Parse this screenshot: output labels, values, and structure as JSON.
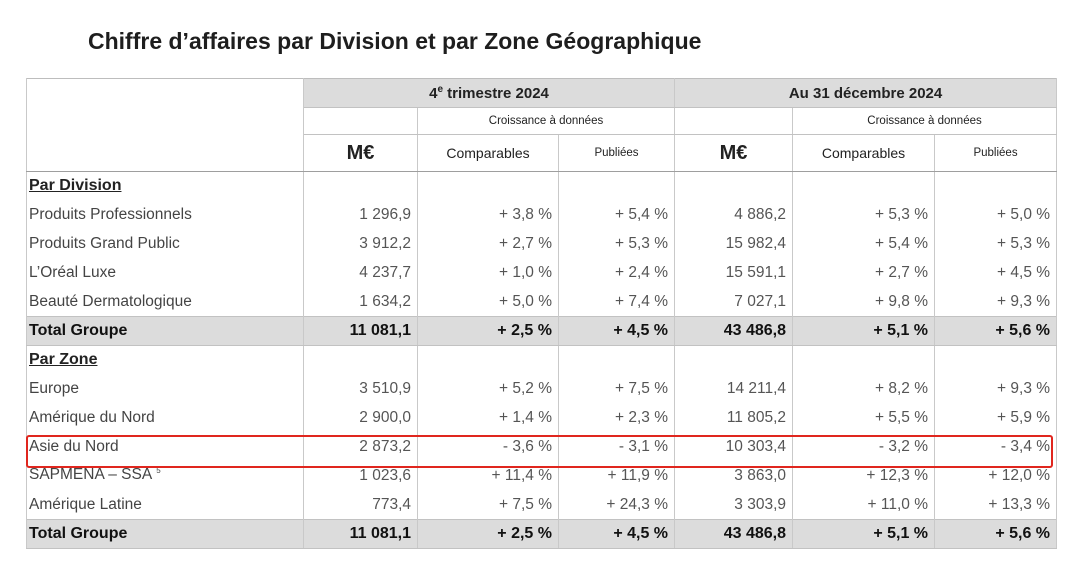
{
  "title": "Chiffre d’affaires par Division et par Zone Géographique",
  "header": {
    "period1": "4",
    "period1_sup": "e",
    "period1_rest": " trimestre 2024",
    "period2": "Au 31 décembre 2024",
    "growth_label": "Croissance à données",
    "me": "M€",
    "comparables": "Comparables",
    "publiees": "Publiées"
  },
  "sections": {
    "division_label": "Par Division",
    "zone_label": "Par Zone"
  },
  "division_rows": [
    {
      "label": "Produits Professionnels",
      "q4_me": "1 296,9",
      "q4_comp": "+ 3,8 %",
      "q4_pub": "+ 5,4 %",
      "y_me": "4 886,2",
      "y_comp": "+ 5,3 %",
      "y_pub": "+ 5,0 %"
    },
    {
      "label": "Produits Grand Public",
      "q4_me": "3 912,2",
      "q4_comp": "+ 2,7 %",
      "q4_pub": "+ 5,3 %",
      "y_me": "15 982,4",
      "y_comp": "+ 5,4 %",
      "y_pub": "+ 5,3 %"
    },
    {
      "label": "L’Oréal Luxe",
      "q4_me": "4 237,7",
      "q4_comp": "+ 1,0 %",
      "q4_pub": "+ 2,4 %",
      "y_me": "15 591,1",
      "y_comp": "+ 2,7 %",
      "y_pub": "+ 4,5 %"
    },
    {
      "label": "Beauté Dermatologique",
      "q4_me": "1 634,2",
      "q4_comp": "+ 5,0 %",
      "q4_pub": "+ 7,4 %",
      "y_me": "7 027,1",
      "y_comp": "+ 9,8 %",
      "y_pub": "+ 9,3 %"
    }
  ],
  "division_total": {
    "label": "Total Groupe",
    "q4_me": "11 081,1",
    "q4_comp": "+ 2,5 %",
    "q4_pub": "+ 4,5 %",
    "y_me": "43 486,8",
    "y_comp": "+ 5,1 %",
    "y_pub": "+ 5,6 %"
  },
  "zone_rows": [
    {
      "label": "Europe",
      "q4_me": "3 510,9",
      "q4_comp": "+ 5,2 %",
      "q4_pub": "+ 7,5 %",
      "y_me": "14 211,4",
      "y_comp": "+ 8,2 %",
      "y_pub": "+ 9,3 %"
    },
    {
      "label": "Amérique du Nord",
      "q4_me": "2 900,0",
      "q4_comp": "+ 1,4 %",
      "q4_pub": "+ 2,3 %",
      "y_me": "11 805,2",
      "y_comp": "+ 5,5 %",
      "y_pub": "+ 5,9 %"
    },
    {
      "label": "Asie du Nord",
      "q4_me": "2 873,2",
      "q4_comp": "- 3,6 %",
      "q4_pub": "- 3,1 %",
      "y_me": "10 303,4",
      "y_comp": "- 3,2 %",
      "y_pub": "- 3,4 %"
    },
    {
      "label": "SAPMENA – SSA",
      "label_sup": "5",
      "q4_me": "1 023,6",
      "q4_comp": "+ 11,4 %",
      "q4_pub": "+ 11,9 %",
      "y_me": "3 863,0",
      "y_comp": "+ 12,3 %",
      "y_pub": "+ 12,0 %"
    },
    {
      "label": "Amérique Latine",
      "q4_me": "773,4",
      "q4_comp": "+ 7,5 %",
      "q4_pub": "+ 24,3 %",
      "y_me": "3 303,9",
      "y_comp": "+ 11,0 %",
      "y_pub": "+ 13,3 %"
    }
  ],
  "zone_total": {
    "label": "Total Groupe",
    "q4_me": "11 081,1",
    "q4_comp": "+ 2,5 %",
    "q4_pub": "+ 4,5 %",
    "y_me": "43 486,8",
    "y_comp": "+ 5,1 %",
    "y_pub": "+ 5,6 %"
  },
  "highlight_color": "#e0261e",
  "header_fill": "#dcdcdc"
}
